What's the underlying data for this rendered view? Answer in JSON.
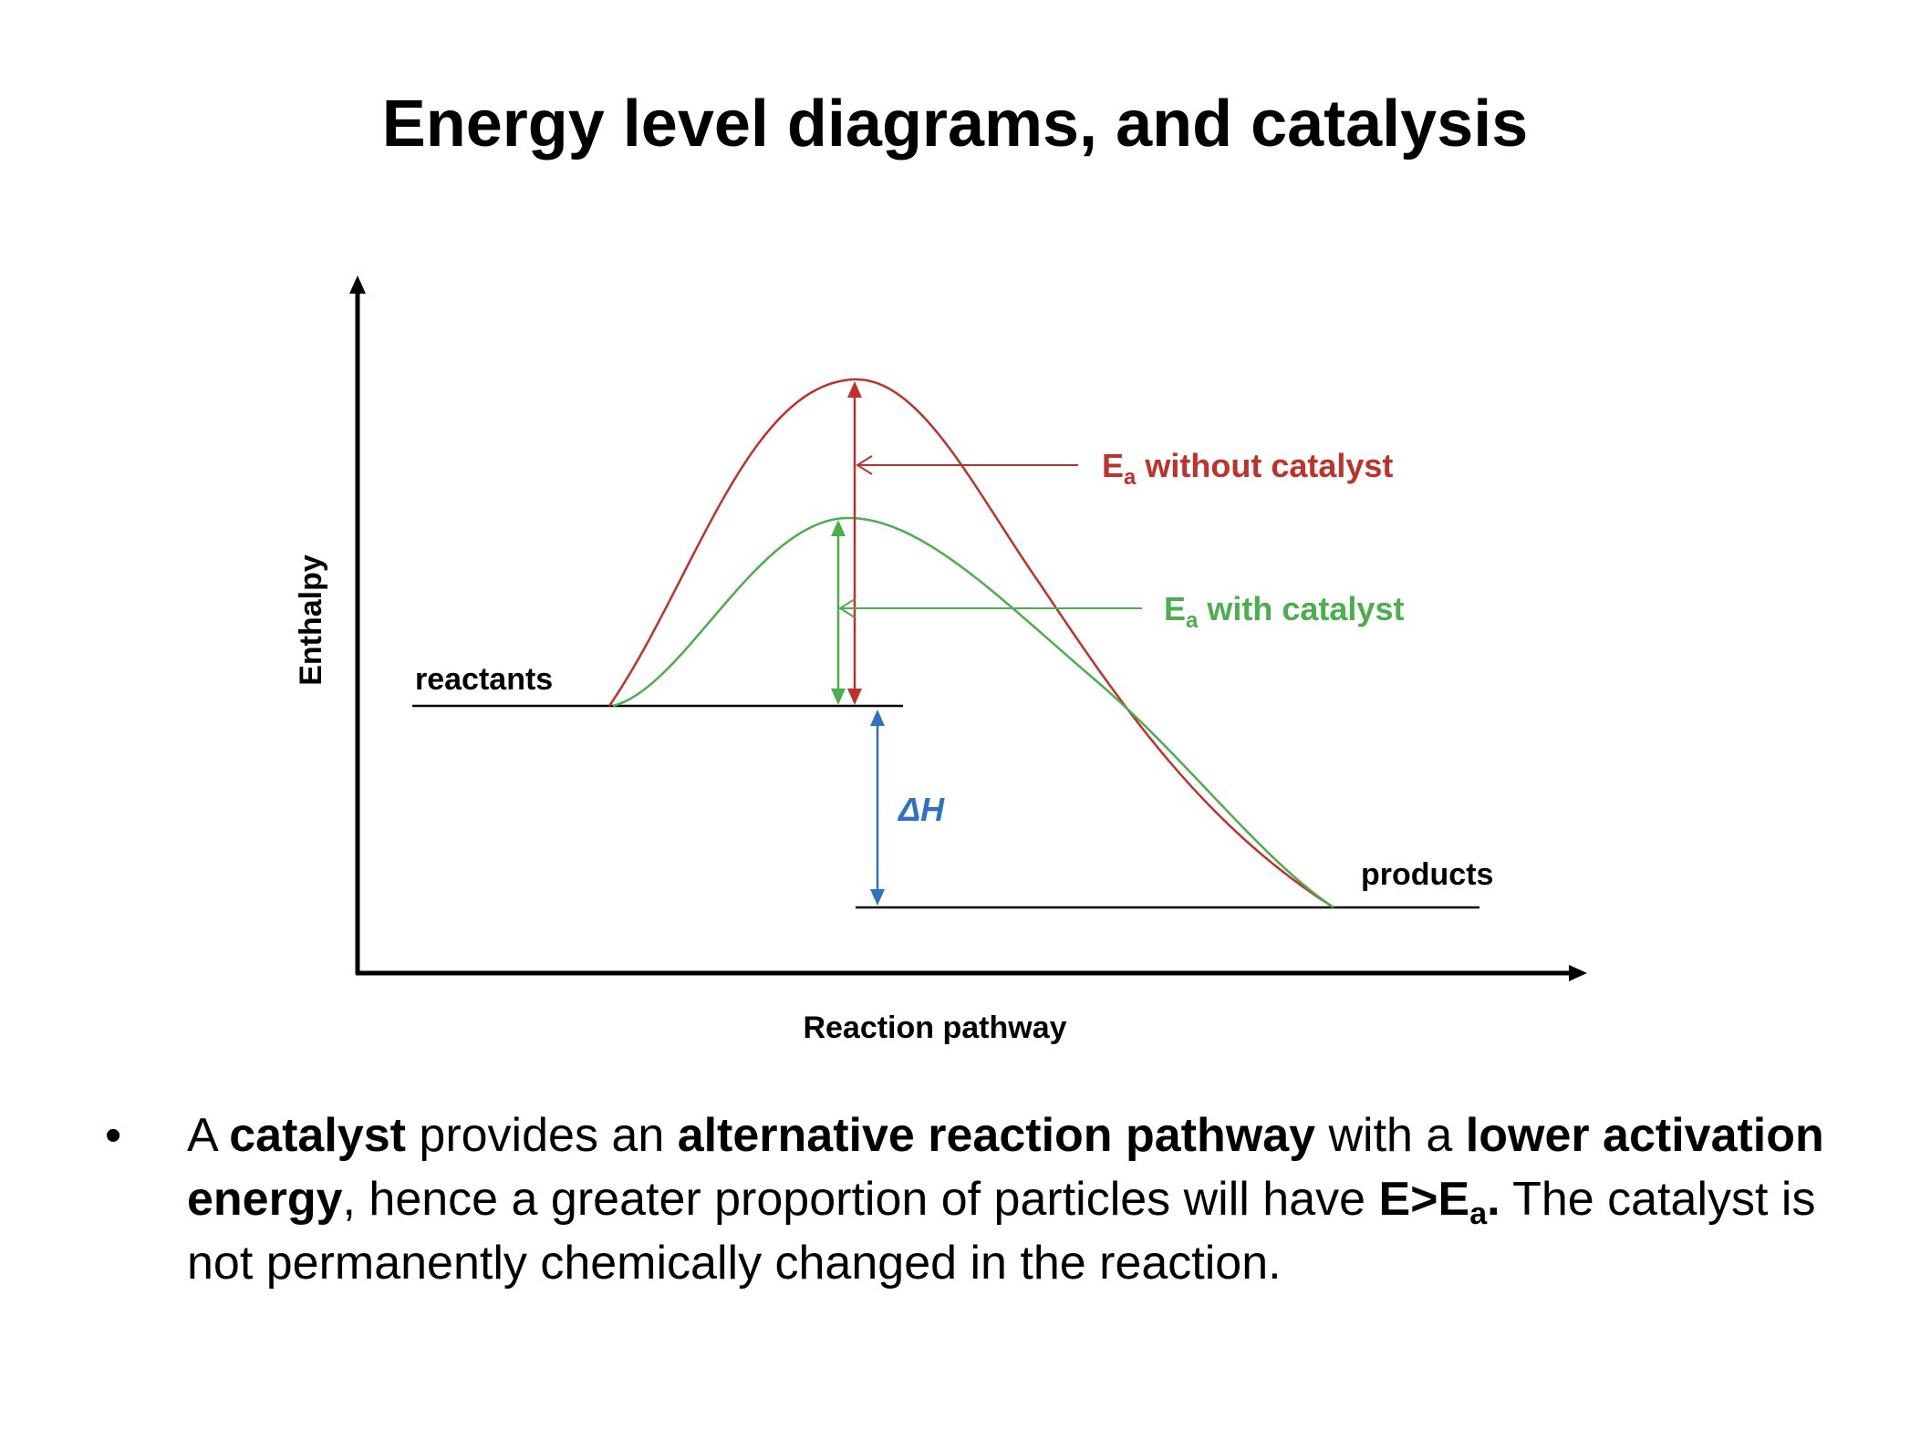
{
  "title": "Energy level diagrams, and catalysis",
  "diagram": {
    "y_axis_label": "Enthalpy",
    "x_axis_label": "Reaction pathway",
    "reactants_label": "reactants",
    "products_label": "products",
    "delta_h_label": "ΔH",
    "ea_without": {
      "main": "E",
      "sub": "a",
      "rest": " without catalyst",
      "color": "#c0312b"
    },
    "ea_with": {
      "main": "E",
      "sub": "a",
      "rest": " with catalyst",
      "color": "#4cae4f"
    },
    "delta_h_color": "#2f72c2"
  },
  "bullet": {
    "marker": "•",
    "parts": [
      {
        "text": "A ",
        "bold": false
      },
      {
        "text": "catalyst",
        "bold": true
      },
      {
        "text": " provides an ",
        "bold": false
      },
      {
        "text": "alternative reaction pathway",
        "bold": true
      },
      {
        "text": " with a ",
        "bold": false
      },
      {
        "text": "lower activation energy",
        "bold": true
      },
      {
        "text": ", hence a greater proportion of particles will have ",
        "bold": false
      },
      {
        "text": "E>E",
        "bold": true
      },
      {
        "text": "a",
        "bold": true,
        "sub": true
      },
      {
        "text": ".",
        "bold": true
      },
      {
        "text": " The catalyst is not permanently chemically changed in the reaction.",
        "bold": false
      }
    ]
  }
}
